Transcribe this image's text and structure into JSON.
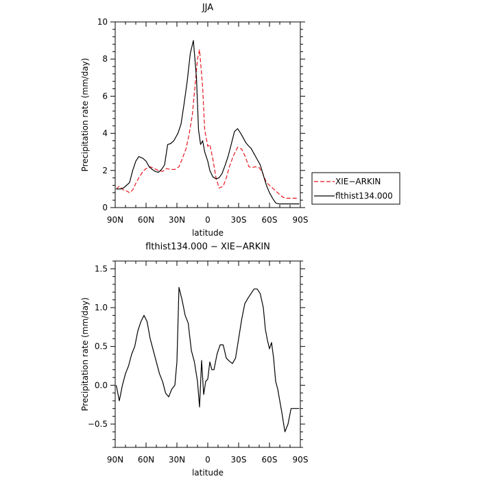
{
  "chart_data": [
    {
      "type": "line",
      "title": "JJA",
      "xlabel": "latitude",
      "ylabel": "Precipitation rate (mm/day)",
      "xlim": [
        -90,
        90
      ],
      "ylim": [
        0,
        10
      ],
      "xticks": [
        -90,
        -60,
        -30,
        0,
        30,
        60,
        90
      ],
      "xtick_labels": [
        "90N",
        "60N",
        "30N",
        "0",
        "30S",
        "60S",
        "90S"
      ],
      "yticks": [
        0,
        2,
        4,
        6,
        8,
        10
      ],
      "ytick_labels": [
        "0",
        "2",
        "4",
        "6",
        "8",
        "10"
      ],
      "legend_position": "right",
      "series": [
        {
          "name": "XIE−ARKIN",
          "color": "#e8141c",
          "dash": "dashed",
          "x": [
            -89,
            -86,
            -82,
            -79,
            -76,
            -73,
            -70,
            -67,
            -63,
            -60,
            -56,
            -52,
            -48,
            -44,
            -40,
            -36,
            -32,
            -28,
            -25,
            -21,
            -18,
            -15,
            -12,
            -10,
            -8,
            -5,
            -3,
            0,
            2,
            5,
            8,
            11,
            15,
            18,
            21,
            25,
            29,
            33,
            36,
            40,
            43,
            46,
            50,
            53,
            57,
            61,
            64,
            68,
            72,
            75,
            80,
            84,
            88
          ],
          "y": [
            1.0,
            1.15,
            0.95,
            0.9,
            0.8,
            0.95,
            1.3,
            1.6,
            1.95,
            2.1,
            2.2,
            2.1,
            2.0,
            1.95,
            2.1,
            2.05,
            2.05,
            2.2,
            2.6,
            3.2,
            4.0,
            5.0,
            6.8,
            8.0,
            8.5,
            6.5,
            4.2,
            3.3,
            3.4,
            2.6,
            1.6,
            1.05,
            1.15,
            1.6,
            2.2,
            2.8,
            3.25,
            3.15,
            2.8,
            2.2,
            2.15,
            2.2,
            2.15,
            1.9,
            1.35,
            1.15,
            1.0,
            0.8,
            0.6,
            0.5,
            0.5,
            0.5,
            0.5
          ]
        },
        {
          "name": "flthist134.000",
          "color": "#000000",
          "dash": "solid",
          "x": [
            -89,
            -85,
            -82,
            -79,
            -76,
            -73,
            -70,
            -67,
            -63,
            -60,
            -57,
            -54,
            -51,
            -48,
            -45,
            -42,
            -39,
            -36,
            -33,
            -31,
            -29,
            -26,
            -23,
            -20,
            -17,
            -14,
            -11,
            -9,
            -7,
            -5,
            -3,
            0,
            2,
            5,
            8,
            11,
            14,
            17,
            20,
            23,
            26,
            29,
            32,
            35,
            37,
            40,
            42,
            45,
            48,
            51,
            54,
            57,
            60,
            63,
            66,
            69,
            72,
            75,
            78,
            81,
            84,
            87,
            89
          ],
          "y": [
            1.0,
            1.0,
            1.05,
            1.2,
            1.35,
            2.0,
            2.5,
            2.75,
            2.65,
            2.5,
            2.2,
            2.05,
            1.95,
            1.9,
            2.05,
            2.3,
            3.4,
            3.45,
            3.6,
            3.8,
            4.0,
            4.5,
            5.6,
            6.8,
            8.3,
            9.0,
            7.0,
            4.2,
            3.4,
            3.6,
            3.0,
            2.5,
            2.0,
            1.65,
            1.55,
            1.6,
            1.85,
            2.3,
            2.8,
            3.45,
            4.1,
            4.25,
            4.0,
            3.7,
            3.5,
            3.3,
            3.2,
            2.9,
            2.6,
            2.3,
            1.75,
            1.2,
            0.8,
            0.5,
            0.25,
            0.2,
            0.2,
            0.2,
            0.2,
            0.2,
            0.2,
            0.2,
            0.2
          ]
        }
      ]
    },
    {
      "type": "line",
      "title": "flthist134.000 − XIE−ARKIN",
      "xlabel": "latitude",
      "ylabel": "Precipitation rate (mm/day)",
      "xlim": [
        -90,
        90
      ],
      "ylim": [
        -0.8,
        1.6
      ],
      "xticks": [
        -90,
        -60,
        -30,
        0,
        30,
        60,
        90
      ],
      "xtick_labels": [
        "90N",
        "60N",
        "30N",
        "0",
        "30S",
        "60S",
        "90S"
      ],
      "yticks": [
        -0.5,
        0.0,
        0.5,
        1.0,
        1.5
      ],
      "ytick_labels": [
        "−0.5",
        "0.0",
        "0.5",
        "1.0",
        "1.5"
      ],
      "series": [
        {
          "color": "#000000",
          "dash": "solid",
          "x": [
            -89,
            -86,
            -83,
            -80,
            -77,
            -74,
            -71,
            -68,
            -65,
            -62,
            -59,
            -56,
            -53,
            -50,
            -47,
            -44,
            -41,
            -38,
            -35,
            -32,
            -30,
            -28,
            -25,
            -22,
            -19,
            -16,
            -13,
            -10,
            -8,
            -6,
            -4,
            -2,
            0,
            2,
            4,
            6,
            9,
            12,
            15,
            18,
            21,
            24,
            27,
            30,
            33,
            36,
            39,
            42,
            45,
            48,
            51,
            54,
            56,
            58,
            60,
            62,
            64,
            66,
            68,
            70,
            72,
            75,
            78,
            81,
            84,
            87,
            89
          ],
          "y": [
            0.0,
            -0.2,
            0.0,
            0.15,
            0.25,
            0.4,
            0.5,
            0.7,
            0.82,
            0.9,
            0.82,
            0.6,
            0.45,
            0.3,
            0.15,
            0.05,
            -0.1,
            -0.15,
            -0.05,
            0.0,
            0.3,
            1.26,
            1.1,
            0.9,
            0.8,
            0.45,
            0.3,
            0.05,
            -0.28,
            0.32,
            -0.12,
            0.05,
            0.08,
            0.3,
            0.2,
            0.2,
            0.4,
            0.52,
            0.52,
            0.35,
            0.31,
            0.28,
            0.35,
            0.6,
            0.85,
            1.05,
            1.12,
            1.18,
            1.24,
            1.24,
            1.18,
            1.0,
            0.72,
            0.58,
            0.47,
            0.55,
            0.35,
            0.05,
            -0.05,
            -0.2,
            -0.35,
            -0.6,
            -0.5,
            -0.3,
            -0.3,
            -0.3,
            -0.3
          ]
        }
      ]
    }
  ]
}
